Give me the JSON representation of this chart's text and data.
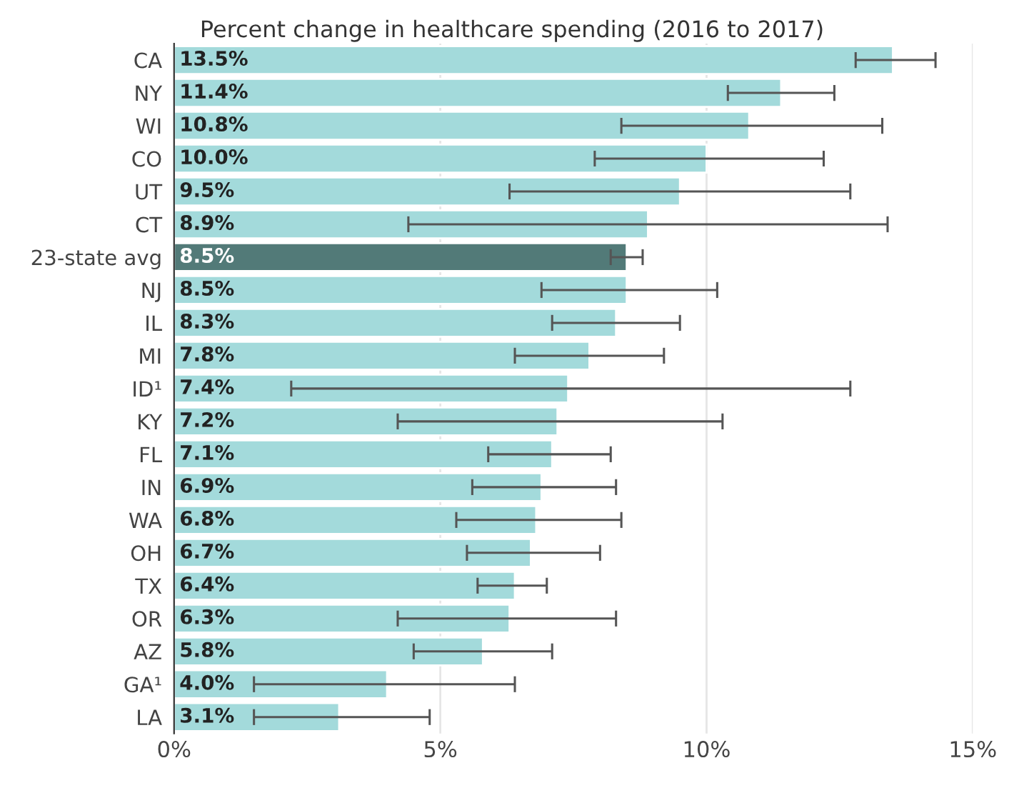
{
  "chart_data": {
    "type": "bar",
    "orientation": "horizontal",
    "title": "Percent change in healthcare spending (2016 to 2017)",
    "categories": [
      "CA",
      "NY",
      "WI",
      "CO",
      "UT",
      "CT",
      "23-state avg",
      "NJ",
      "IL",
      "MI",
      "ID¹",
      "KY",
      "FL",
      "IN",
      "WA",
      "OH",
      "TX",
      "OR",
      "AZ",
      "GA¹",
      "LA"
    ],
    "values": [
      13.5,
      11.4,
      10.8,
      10.0,
      9.5,
      8.9,
      8.5,
      8.5,
      8.3,
      7.8,
      7.4,
      7.2,
      7.1,
      6.9,
      6.8,
      6.7,
      6.4,
      6.3,
      5.8,
      4.0,
      3.1
    ],
    "value_labels": [
      "13.5%",
      "11.4%",
      "10.8%",
      "10.0%",
      "9.5%",
      "8.9%",
      "8.5%",
      "8.5%",
      "8.3%",
      "7.8%",
      "7.4%",
      "7.2%",
      "7.1%",
      "6.9%",
      "6.8%",
      "6.7%",
      "6.4%",
      "6.3%",
      "5.8%",
      "4.0%",
      "3.1%"
    ],
    "errors": [
      [
        12.8,
        14.3
      ],
      [
        10.4,
        12.4
      ],
      [
        8.4,
        13.3
      ],
      [
        7.9,
        12.2
      ],
      [
        6.3,
        12.7
      ],
      [
        4.4,
        13.4
      ],
      [
        8.2,
        8.8
      ],
      [
        6.9,
        10.2
      ],
      [
        7.1,
        9.5
      ],
      [
        6.4,
        9.2
      ],
      [
        2.2,
        12.7
      ],
      [
        4.2,
        10.3
      ],
      [
        5.9,
        8.2
      ],
      [
        5.6,
        8.3
      ],
      [
        5.3,
        8.4
      ],
      [
        5.5,
        8.0
      ],
      [
        5.7,
        7.0
      ],
      [
        4.2,
        8.3
      ],
      [
        4.5,
        7.1
      ],
      [
        1.5,
        6.4
      ],
      [
        1.5,
        4.8
      ]
    ],
    "colors": [
      "#a3dadb",
      "#a3dadb",
      "#a3dadb",
      "#a3dadb",
      "#a3dadb",
      "#a3dadb",
      "#527a78",
      "#a3dadb",
      "#a3dadb",
      "#a3dadb",
      "#a3dadb",
      "#a3dadb",
      "#a3dadb",
      "#a3dadb",
      "#a3dadb",
      "#a3dadb",
      "#a3dadb",
      "#a3dadb",
      "#a3dadb",
      "#a3dadb",
      "#a3dadb"
    ],
    "xlim": [
      0,
      15
    ],
    "xticks": [
      {
        "value": 0,
        "label": "0%"
      },
      {
        "value": 5,
        "label": "5%"
      },
      {
        "value": 10,
        "label": "10%"
      },
      {
        "value": 15,
        "label": "15%"
      }
    ],
    "grid": "x"
  }
}
